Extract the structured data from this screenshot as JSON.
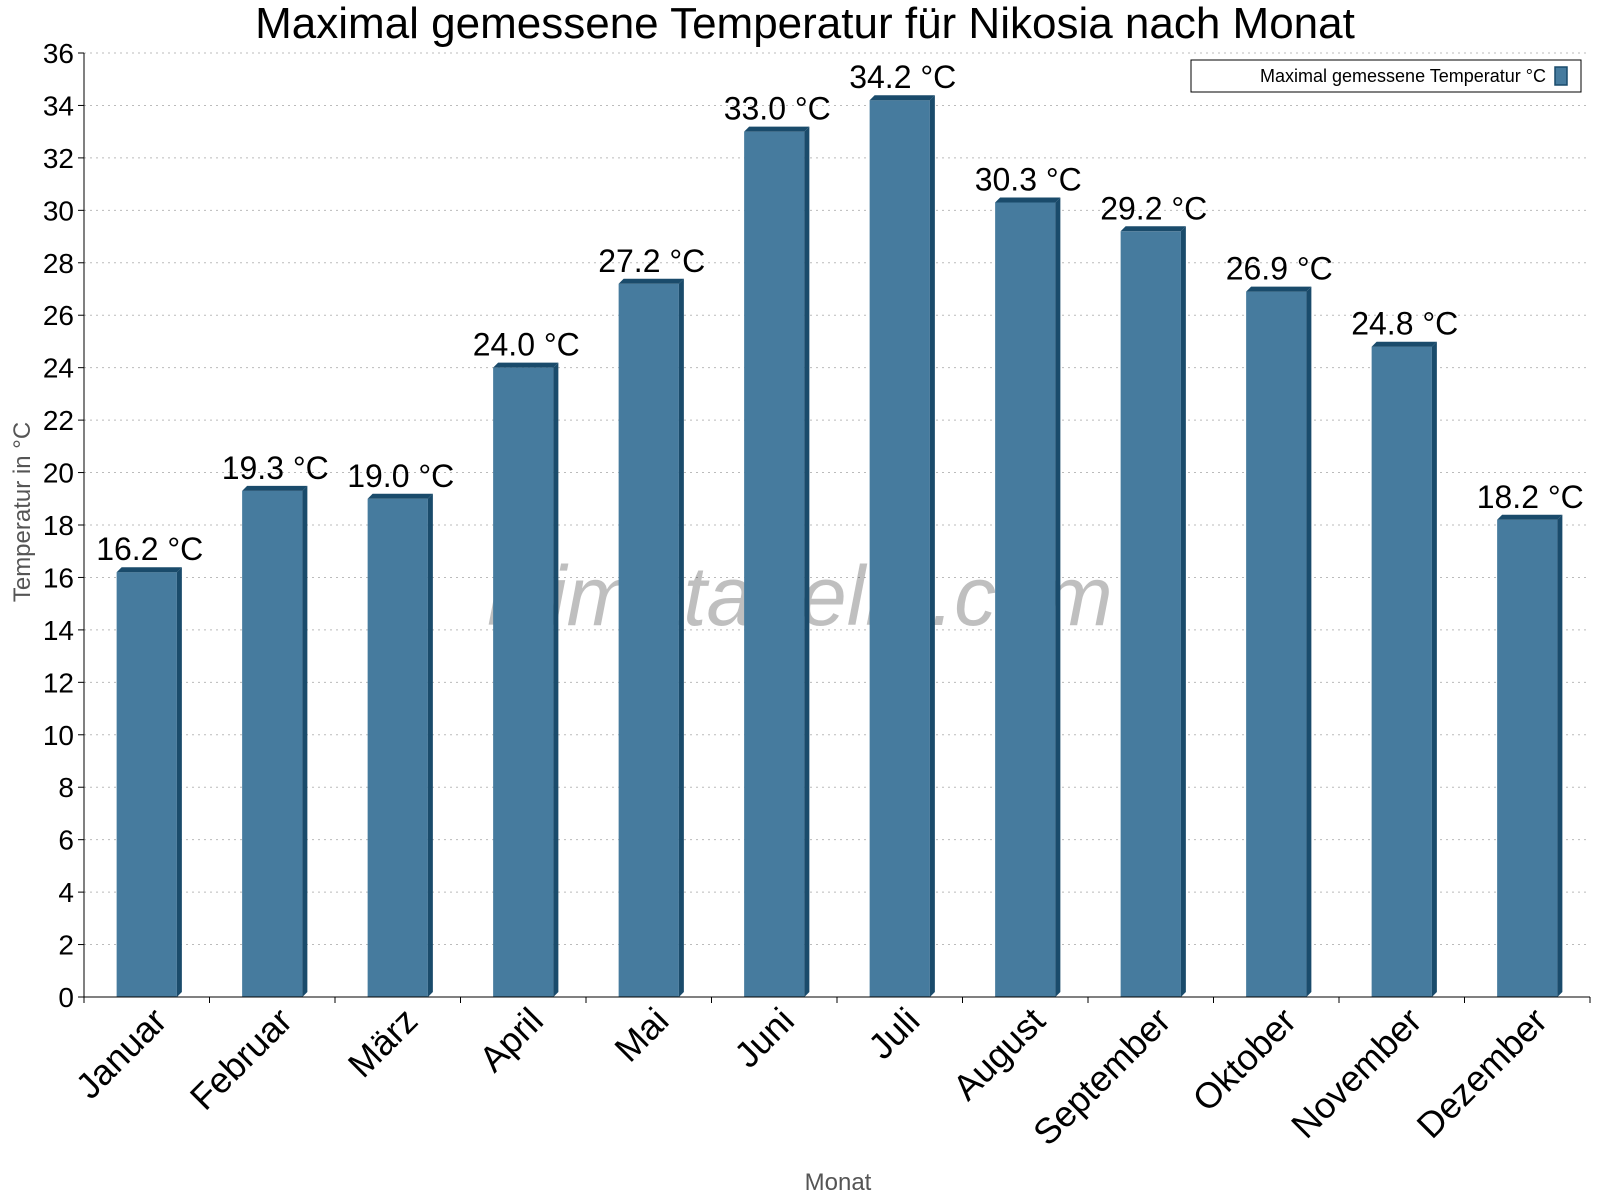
{
  "chart_data": {
    "type": "bar",
    "title": "Maximal gemessene Temperatur für Nikosia nach Monat",
    "xlabel": "Monat",
    "ylabel": "Temperatur in °C",
    "categories": [
      "Januar",
      "Februar",
      "März",
      "April",
      "Mai",
      "Juni",
      "Juli",
      "August",
      "September",
      "Oktober",
      "November",
      "Dezember"
    ],
    "series": [
      {
        "name": "Maximal gemessene Temperatur °C",
        "values": [
          16.2,
          19.3,
          19.0,
          24.0,
          27.2,
          33.0,
          34.2,
          30.3,
          29.2,
          26.9,
          24.8,
          18.2
        ],
        "labels": [
          "16.2 °C",
          "19.3 °C",
          "19.0 °C",
          "24.0 °C",
          "27.2 °C",
          "33.0 °C",
          "34.2 °C",
          "30.3 °C",
          "29.2 °C",
          "26.9 °C",
          "24.8 °C",
          "18.2 °C"
        ]
      }
    ],
    "ylim": [
      0,
      36
    ],
    "yticks": [
      0,
      2,
      4,
      6,
      8,
      10,
      12,
      14,
      16,
      18,
      20,
      22,
      24,
      26,
      28,
      30,
      32,
      34,
      36
    ],
    "grid": true,
    "legend_position": "top-right",
    "colors": {
      "bar": "#467b9e",
      "bar_dark": "#1a4b6b",
      "grid": "#bbbbbb"
    }
  },
  "watermark": "klimatabelle.com"
}
